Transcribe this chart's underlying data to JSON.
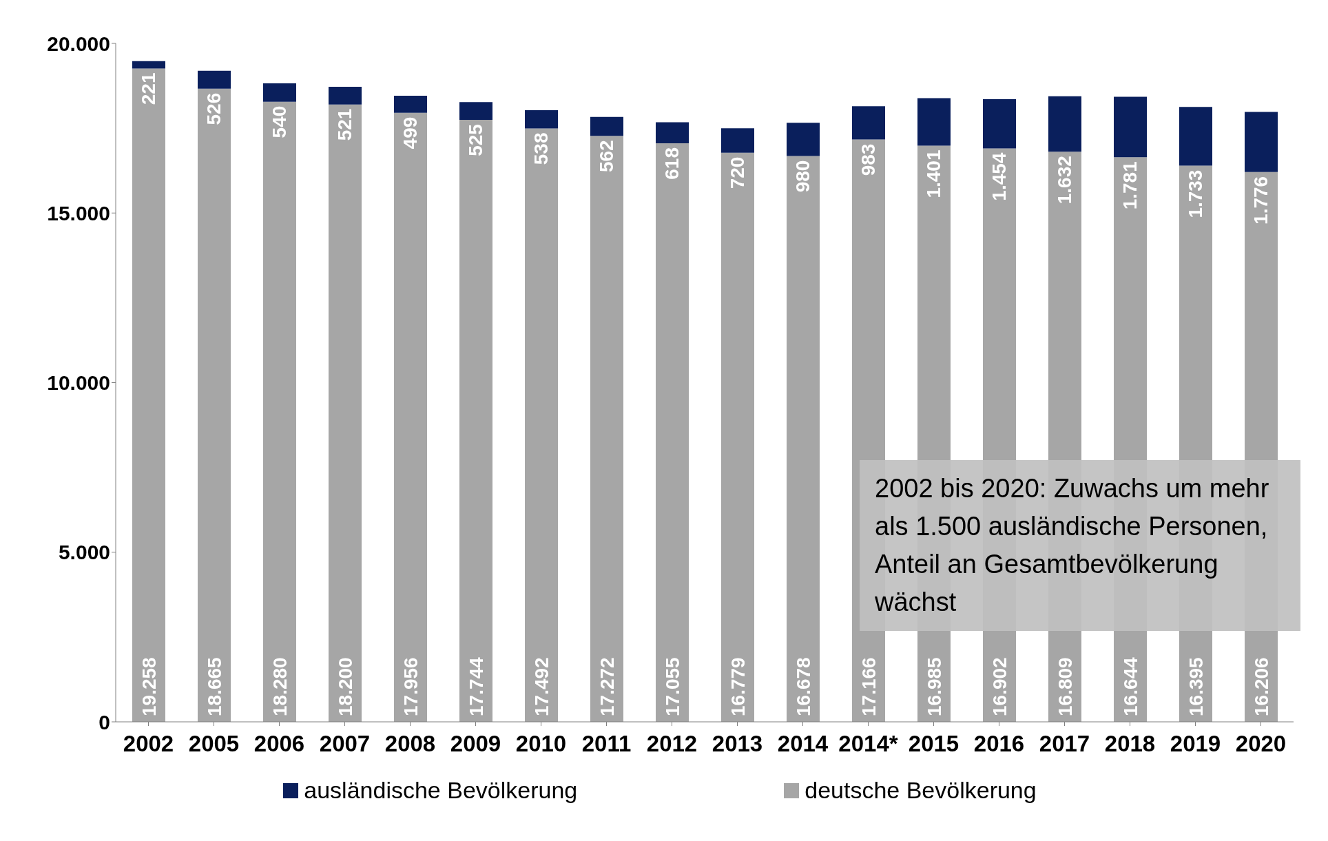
{
  "chart_data": {
    "type": "bar",
    "stacked": true,
    "categories": [
      "2002",
      "2005",
      "2006",
      "2007",
      "2008",
      "2009",
      "2010",
      "2011",
      "2012",
      "2013",
      "2014",
      "2014*",
      "2015",
      "2016",
      "2017",
      "2018",
      "2019",
      "2020"
    ],
    "series": [
      {
        "name": "deutsche Bevölkerung",
        "color": "#a6a6a6",
        "values": [
          19258,
          18665,
          18280,
          18200,
          17956,
          17744,
          17492,
          17272,
          17055,
          16779,
          16678,
          17166,
          16985,
          16902,
          16809,
          16644,
          16395,
          16206
        ],
        "value_labels": [
          "19.258",
          "18.665",
          "18.280",
          "18.200",
          "17.956",
          "17.744",
          "17.492",
          "17.272",
          "17.055",
          "16.779",
          "16.678",
          "17.166",
          "16.985",
          "16.902",
          "16.809",
          "16.644",
          "16.395",
          "16.206"
        ]
      },
      {
        "name": "ausländische Bevölkerung",
        "color": "#0a1f5c",
        "values": [
          221,
          526,
          540,
          521,
          499,
          525,
          538,
          562,
          618,
          720,
          980,
          983,
          1401,
          1454,
          1632,
          1781,
          1733,
          1776
        ],
        "value_labels": [
          "221",
          "526",
          "540",
          "521",
          "499",
          "525",
          "538",
          "562",
          "618",
          "720",
          "980",
          "983",
          "1.401",
          "1.454",
          "1.632",
          "1.781",
          "1.733",
          "1.776"
        ]
      }
    ],
    "ylim": [
      0,
      20000
    ],
    "yticks": [
      {
        "value": 0,
        "label": "0"
      },
      {
        "value": 5000,
        "label": "5.000"
      },
      {
        "value": 10000,
        "label": "10.000"
      },
      {
        "value": 15000,
        "label": "15.000"
      },
      {
        "value": 20000,
        "label": "20.000"
      }
    ],
    "grid": false,
    "legend": "bottom",
    "annotations": [
      "2002 bis 2020: Zuwachs um mehr als 1.500 ausländische Personen, Anteil an Gesamtbevölkerung wächst"
    ]
  }
}
